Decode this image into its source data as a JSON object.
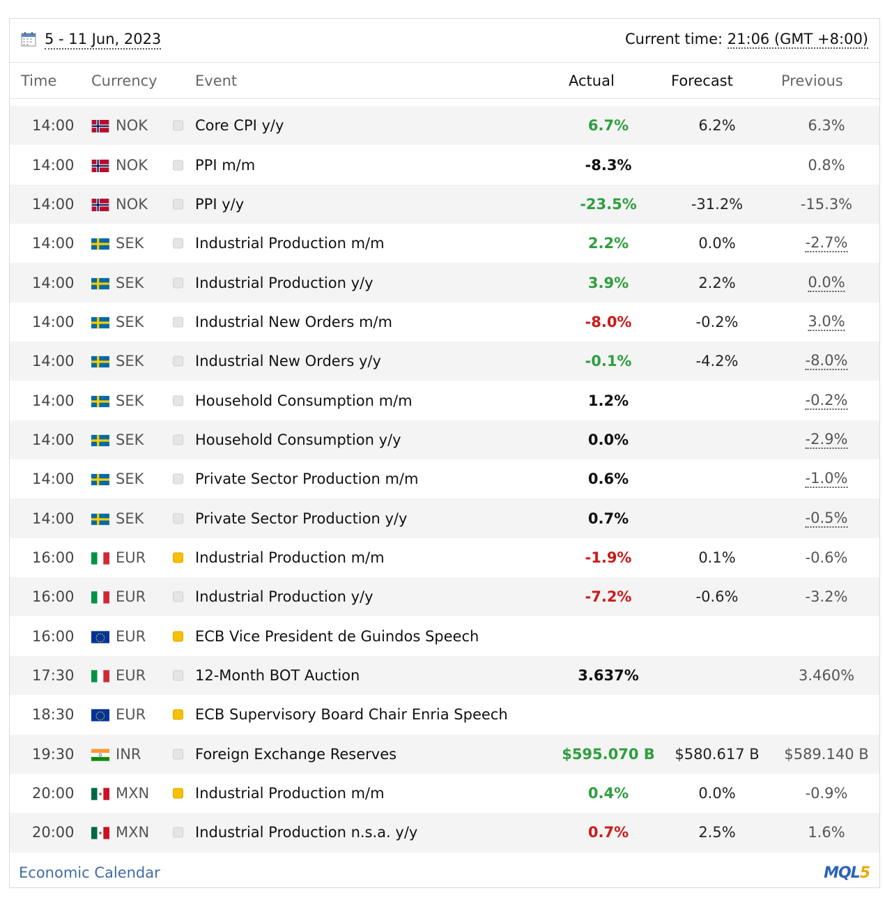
{
  "toolbar": {
    "date_range": "5 - 11 Jun, 2023",
    "current_time_label": "Current time:",
    "current_time_value": "21:06 (GMT +8:00)"
  },
  "columns": {
    "time": "Time",
    "currency": "Currency",
    "event": "Event",
    "actual": "Actual",
    "forecast": "Forecast",
    "previous": "Previous"
  },
  "rows": [
    {
      "time": "14:00",
      "flag": "norway-flag-icon",
      "currency": "NOK",
      "importance": "low",
      "event": "Core CPI y/y",
      "actual": "6.7%",
      "actual_color": "#2e9e3e",
      "forecast": "6.2%",
      "previous": "6.3%",
      "revised": false
    },
    {
      "time": "14:00",
      "flag": "norway-flag-icon",
      "currency": "NOK",
      "importance": "low",
      "event": "PPI m/m",
      "actual": "-8.3%",
      "actual_color": "#111111",
      "forecast": "",
      "previous": "0.8%",
      "revised": false
    },
    {
      "time": "14:00",
      "flag": "norway-flag-icon",
      "currency": "NOK",
      "importance": "low",
      "event": "PPI y/y",
      "actual": "-23.5%",
      "actual_color": "#2e9e3e",
      "forecast": "-31.2%",
      "previous": "-15.3%",
      "revised": false
    },
    {
      "time": "14:00",
      "flag": "sweden-flag-icon",
      "currency": "SEK",
      "importance": "low",
      "event": "Industrial Production m/m",
      "actual": "2.2%",
      "actual_color": "#2e9e3e",
      "forecast": "0.0%",
      "previous": "-2.7%",
      "revised": true
    },
    {
      "time": "14:00",
      "flag": "sweden-flag-icon",
      "currency": "SEK",
      "importance": "low",
      "event": "Industrial Production y/y",
      "actual": "3.9%",
      "actual_color": "#2e9e3e",
      "forecast": "2.2%",
      "previous": "0.0%",
      "revised": true
    },
    {
      "time": "14:00",
      "flag": "sweden-flag-icon",
      "currency": "SEK",
      "importance": "low",
      "event": "Industrial New Orders m/m",
      "actual": "-8.0%",
      "actual_color": "#cc1a1a",
      "forecast": "-0.2%",
      "previous": "3.0%",
      "revised": true
    },
    {
      "time": "14:00",
      "flag": "sweden-flag-icon",
      "currency": "SEK",
      "importance": "low",
      "event": "Industrial New Orders y/y",
      "actual": "-0.1%",
      "actual_color": "#2e9e3e",
      "forecast": "-4.2%",
      "previous": "-8.0%",
      "revised": true
    },
    {
      "time": "14:00",
      "flag": "sweden-flag-icon",
      "currency": "SEK",
      "importance": "low",
      "event": "Household Consumption m/m",
      "actual": "1.2%",
      "actual_color": "#111111",
      "forecast": "",
      "previous": "-0.2%",
      "revised": true
    },
    {
      "time": "14:00",
      "flag": "sweden-flag-icon",
      "currency": "SEK",
      "importance": "low",
      "event": "Household Consumption y/y",
      "actual": "0.0%",
      "actual_color": "#111111",
      "forecast": "",
      "previous": "-2.9%",
      "revised": true
    },
    {
      "time": "14:00",
      "flag": "sweden-flag-icon",
      "currency": "SEK",
      "importance": "low",
      "event": "Private Sector Production m/m",
      "actual": "0.6%",
      "actual_color": "#111111",
      "forecast": "",
      "previous": "-1.0%",
      "revised": true
    },
    {
      "time": "14:00",
      "flag": "sweden-flag-icon",
      "currency": "SEK",
      "importance": "low",
      "event": "Private Sector Production y/y",
      "actual": "0.7%",
      "actual_color": "#111111",
      "forecast": "",
      "previous": "-0.5%",
      "revised": true
    },
    {
      "time": "16:00",
      "flag": "italy-flag-icon",
      "currency": "EUR",
      "importance": "medium",
      "event": "Industrial Production m/m",
      "actual": "-1.9%",
      "actual_color": "#cc1a1a",
      "forecast": "0.1%",
      "previous": "-0.6%",
      "revised": false
    },
    {
      "time": "16:00",
      "flag": "italy-flag-icon",
      "currency": "EUR",
      "importance": "low",
      "event": "Industrial Production y/y",
      "actual": "-7.2%",
      "actual_color": "#cc1a1a",
      "forecast": "-0.6%",
      "previous": "-3.2%",
      "revised": false
    },
    {
      "time": "16:00",
      "flag": "eu-flag-icon",
      "currency": "EUR",
      "importance": "medium",
      "event": "ECB Vice President de Guindos Speech",
      "actual": "",
      "actual_color": "#111111",
      "forecast": "",
      "previous": "",
      "revised": false
    },
    {
      "time": "17:30",
      "flag": "italy-flag-icon",
      "currency": "EUR",
      "importance": "low",
      "event": "12-Month BOT Auction",
      "actual": "3.637%",
      "actual_color": "#111111",
      "forecast": "",
      "previous": "3.460%",
      "revised": false
    },
    {
      "time": "18:30",
      "flag": "eu-flag-icon",
      "currency": "EUR",
      "importance": "medium",
      "event": "ECB Supervisory Board Chair Enria Speech",
      "actual": "",
      "actual_color": "#111111",
      "forecast": "",
      "previous": "",
      "revised": false
    },
    {
      "time": "19:30",
      "flag": "india-flag-icon",
      "currency": "INR",
      "importance": "low",
      "event": "Foreign Exchange Reserves",
      "actual": "$595.070 B",
      "actual_color": "#2e9e3e",
      "forecast": "$580.617 B",
      "previous": "$589.140 B",
      "revised": false
    },
    {
      "time": "20:00",
      "flag": "mexico-flag-icon",
      "currency": "MXN",
      "importance": "medium",
      "event": "Industrial Production m/m",
      "actual": "0.4%",
      "actual_color": "#2e9e3e",
      "forecast": "0.0%",
      "previous": "-0.9%",
      "revised": false
    },
    {
      "time": "20:00",
      "flag": "mexico-flag-icon",
      "currency": "MXN",
      "importance": "low",
      "event": "Industrial Production n.s.a. y/y",
      "actual": "0.7%",
      "actual_color": "#cc1a1a",
      "forecast": "2.5%",
      "previous": "1.6%",
      "revised": false
    }
  ],
  "footer": {
    "link": "Economic Calendar",
    "logo_main": "MQL",
    "logo_num": "5"
  }
}
